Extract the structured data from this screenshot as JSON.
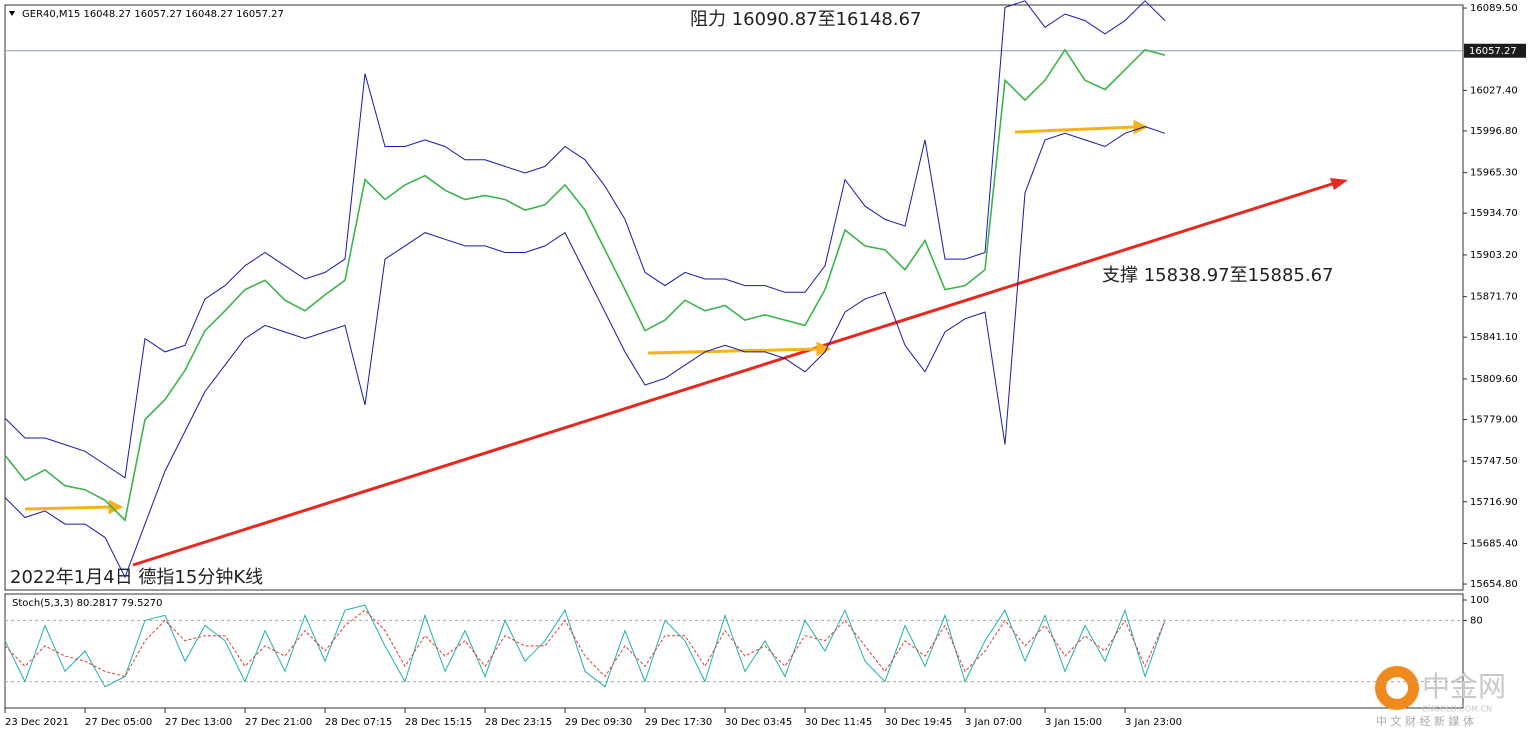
{
  "chart_data": [
    {
      "type": "line",
      "header": "GER40,M15  16048.27 16057.27 16048.27 16057.27",
      "annotations": [
        "阻力 16090.87至16148.67",
        "支撑 15838.97至15885.67",
        "2022年1月4日 德指15分钟K线"
      ],
      "x": [
        0,
        1,
        2,
        3,
        4,
        5,
        6,
        7,
        8,
        9,
        10,
        11,
        12,
        13,
        14,
        15,
        16,
        17,
        18,
        19,
        20,
        21,
        22,
        23,
        24,
        25,
        26,
        27,
        28,
        29,
        30,
        31,
        32,
        33,
        34,
        35,
        36,
        37,
        38,
        39,
        40,
        41,
        42,
        43,
        44,
        45,
        46,
        47,
        48,
        49,
        50,
        51,
        52,
        53,
        54,
        55,
        56,
        57,
        58
      ],
      "xlim": [
        0,
        72.9
      ],
      "xticks": [
        {
          "value": 0,
          "label": "23 Dec 2021"
        },
        {
          "value": 4,
          "label": "27 Dec 05:00"
        },
        {
          "value": 8,
          "label": "27 Dec 13:00"
        },
        {
          "value": 12,
          "label": "27 Dec 21:00"
        },
        {
          "value": 16,
          "label": "28 Dec 07:15"
        },
        {
          "value": 20,
          "label": "28 Dec 15:15"
        },
        {
          "value": 24,
          "label": "28 Dec 23:15"
        },
        {
          "value": 28,
          "label": "29 Dec 09:30"
        },
        {
          "value": 32,
          "label": "29 Dec 17:30"
        },
        {
          "value": 36,
          "label": "30 Dec 03:45"
        },
        {
          "value": 40,
          "label": "30 Dec 11:45"
        },
        {
          "value": 44,
          "label": "30 Dec 19:45"
        },
        {
          "value": 48,
          "label": "3 Jan 07:00"
        },
        {
          "value": 52,
          "label": "3 Jan 15:00"
        },
        {
          "value": 56,
          "label": "3 Jan 23:00"
        }
      ],
      "ylim": [
        15650.3,
        16091.8
      ],
      "yticks": [
        {
          "value": 16089.5,
          "label": "16089.50"
        },
        {
          "value": 16027.4,
          "label": "16027.40"
        },
        {
          "value": 15996.8,
          "label": "15996.80"
        },
        {
          "value": 15965.3,
          "label": "15965.30"
        },
        {
          "value": 15934.7,
          "label": "15934.70"
        },
        {
          "value": 15903.2,
          "label": "15903.20"
        },
        {
          "value": 15871.7,
          "label": "15871.70"
        },
        {
          "value": 15841.1,
          "label": "15841.10"
        },
        {
          "value": 15809.6,
          "label": "15809.60"
        },
        {
          "value": 15779,
          "label": "15779.00"
        },
        {
          "value": 15747.5,
          "label": "15747.50"
        },
        {
          "value": 15716.9,
          "label": "15716.90"
        },
        {
          "value": 15685.4,
          "label": "15685.40"
        },
        {
          "value": 15654.8,
          "label": "15654.80"
        }
      ],
      "current_price": 16057.27,
      "series": [
        {
          "color": "#3cb44b",
          "values": [
            15752,
            15733,
            15741,
            15729,
            15726,
            15718,
            15703,
            15779,
            15794,
            15816,
            15846,
            15861,
            15877,
            15884,
            15869,
            15861,
            15873,
            15884,
            15960,
            15945,
            15956,
            15963,
            15952,
            15945,
            15948,
            15945,
            15937,
            15941,
            15956,
            15937,
            15907,
            15877,
            15846,
            15854,
            15869,
            15861,
            15865,
            15854,
            15858,
            15854,
            15850,
            15877,
            15922,
            15910,
            15907,
            15892,
            15914,
            15877,
            15880,
            15892,
            16035,
            16020,
            16035,
            16058,
            16035,
            16028,
            16043,
            16058,
            16054
          ]
        },
        {
          "color": "#1a1aa6",
          "values": [
            15780,
            15765,
            15765,
            15760,
            15755,
            15745,
            15735,
            15840,
            15830,
            15835,
            15870,
            15880,
            15895,
            15905,
            15895,
            15885,
            15890,
            15900,
            16040,
            15985,
            15985,
            15990,
            15985,
            15975,
            15975,
            15970,
            15965,
            15970,
            15985,
            15975,
            15955,
            15930,
            15890,
            15880,
            15890,
            15885,
            15885,
            15880,
            15880,
            15875,
            15875,
            15895,
            15960,
            15940,
            15930,
            15925,
            15990,
            15900,
            15900,
            15905,
            16090,
            16095,
            16075,
            16085,
            16080,
            16070,
            16080,
            16095,
            16080
          ]
        },
        {
          "color": "#1a1aa6",
          "values": [
            15720,
            15705,
            15710,
            15700,
            15700,
            15690,
            15660,
            15700,
            15740,
            15770,
            15800,
            15820,
            15840,
            15850,
            15845,
            15840,
            15845,
            15850,
            15790,
            15900,
            15910,
            15920,
            15915,
            15910,
            15910,
            15905,
            15905,
            15910,
            15920,
            15890,
            15860,
            15830,
            15805,
            15810,
            15820,
            15830,
            15835,
            15830,
            15830,
            15825,
            15815,
            15830,
            15860,
            15870,
            15875,
            15835,
            15815,
            15845,
            15855,
            15860,
            15760,
            15950,
            15990,
            15995,
            15990,
            15985,
            15995,
            16000,
            15995
          ]
        }
      ]
    },
    {
      "type": "line",
      "title": "Stoch(5,3,3) 80.2817 79.5270",
      "x": [
        0,
        1,
        2,
        3,
        4,
        5,
        6,
        7,
        8,
        9,
        10,
        11,
        12,
        13,
        14,
        15,
        16,
        17,
        18,
        19,
        20,
        21,
        22,
        23,
        24,
        25,
        26,
        27,
        28,
        29,
        30,
        31,
        32,
        33,
        34,
        35,
        36,
        37,
        38,
        39,
        40,
        41,
        42,
        43,
        44,
        45,
        46,
        47,
        48,
        49,
        50,
        51,
        52,
        53,
        54,
        55,
        56,
        57,
        58
      ],
      "xlim": [
        0,
        72.9
      ],
      "ylim": [
        0,
        100
      ],
      "yticks": [
        100,
        80
      ],
      "levels": [
        80,
        20
      ],
      "series": [
        {
          "color": "#20b2aa",
          "dash": false,
          "values": [
            60,
            20,
            75,
            30,
            50,
            15,
            25,
            80,
            85,
            40,
            75,
            60,
            20,
            70,
            30,
            85,
            40,
            90,
            95,
            55,
            20,
            85,
            30,
            70,
            25,
            80,
            40,
            60,
            90,
            30,
            15,
            70,
            20,
            80,
            60,
            20,
            85,
            30,
            60,
            25,
            80,
            50,
            90,
            40,
            20,
            75,
            35,
            85,
            20,
            60,
            90,
            40,
            85,
            30,
            75,
            40,
            90,
            25,
            80
          ]
        },
        {
          "color": "#e03c31",
          "dash": true,
          "values": [
            55,
            35,
            55,
            45,
            40,
            30,
            25,
            60,
            80,
            60,
            65,
            65,
            35,
            55,
            45,
            70,
            50,
            75,
            90,
            70,
            35,
            65,
            45,
            60,
            35,
            65,
            55,
            55,
            80,
            45,
            25,
            55,
            35,
            65,
            65,
            35,
            70,
            45,
            55,
            35,
            65,
            60,
            80,
            55,
            30,
            60,
            45,
            75,
            30,
            50,
            80,
            55,
            75,
            45,
            65,
            50,
            80,
            35,
            79.5
          ]
        }
      ]
    }
  ],
  "watermark": {
    "brand": "中金网",
    "site": "CNGOLD.COM.CN",
    "slogan": "中 文 财 经 新 媒 体"
  }
}
